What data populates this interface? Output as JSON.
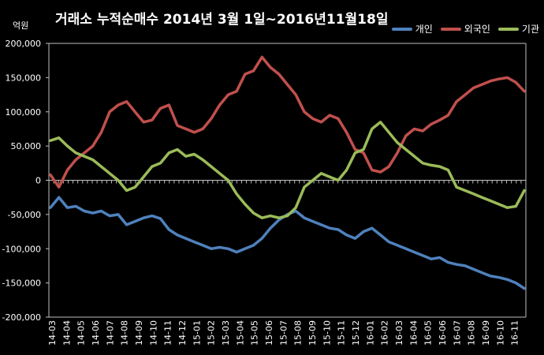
{
  "chart_data": {
    "type": "line",
    "title": "거래소  누적순매수 2014년 3월 1일~2016년11월18일",
    "unit_label": "억원",
    "ylim": [
      -200000,
      200000
    ],
    "ytick_step": 50000,
    "y_tick_labels": [
      "200,000",
      "150,000",
      "100,000",
      "50,000",
      "0",
      "-50,000",
      "-100,000",
      "-150,000",
      "-200,000"
    ],
    "x_labels": [
      "14-03",
      "14-04",
      "14-05",
      "14-06",
      "14-07",
      "14-08",
      "14-09",
      "14-10",
      "14-11",
      "14-12",
      "15-01",
      "15-02",
      "15-03",
      "15-04",
      "15-05",
      "15-06",
      "15-07",
      "15-08",
      "15-09",
      "15-10",
      "15-11",
      "15-12",
      "16-01",
      "16-02",
      "16-03",
      "16-04",
      "16-05",
      "16-06",
      "16-07",
      "16-08",
      "16-09",
      "16-10",
      "16-11"
    ],
    "grid": false,
    "legend_position": "top-right",
    "series": [
      {
        "name": "개인",
        "color": "#4f81bd",
        "values": [
          -40000,
          -25000,
          -40000,
          -38000,
          -45000,
          -48000,
          -45000,
          -52000,
          -50000,
          -65000,
          -60000,
          -55000,
          -52000,
          -56000,
          -72000,
          -80000,
          -85000,
          -90000,
          -95000,
          -100000,
          -98000,
          -100000,
          -105000,
          -100000,
          -95000,
          -85000,
          -70000,
          -58000,
          -50000,
          -45000,
          -55000,
          -60000,
          -65000,
          -70000,
          -72000,
          -80000,
          -85000,
          -75000,
          -70000,
          -80000,
          -90000,
          -95000,
          -100000,
          -105000,
          -110000,
          -115000,
          -113000,
          -120000,
          -123000,
          -125000,
          -130000,
          -135000,
          -140000,
          -142000,
          -145000,
          -150000,
          -158000
        ]
      },
      {
        "name": "외국인",
        "color": "#c0504d",
        "values": [
          8000,
          -10000,
          15000,
          30000,
          40000,
          50000,
          70000,
          100000,
          110000,
          115000,
          100000,
          85000,
          88000,
          105000,
          110000,
          80000,
          75000,
          70000,
          75000,
          90000,
          110000,
          125000,
          130000,
          155000,
          160000,
          180000,
          165000,
          155000,
          140000,
          125000,
          100000,
          90000,
          85000,
          95000,
          90000,
          70000,
          45000,
          40000,
          15000,
          12000,
          20000,
          40000,
          65000,
          75000,
          72000,
          82000,
          88000,
          95000,
          115000,
          125000,
          135000,
          140000,
          145000,
          148000,
          150000,
          143000,
          130000
        ]
      },
      {
        "name": "기관",
        "color": "#9bbb59",
        "values": [
          58000,
          62000,
          50000,
          40000,
          35000,
          30000,
          20000,
          10000,
          0,
          -15000,
          -10000,
          5000,
          20000,
          25000,
          40000,
          45000,
          35000,
          38000,
          30000,
          20000,
          10000,
          0,
          -20000,
          -35000,
          -48000,
          -55000,
          -52000,
          -55000,
          -52000,
          -40000,
          -10000,
          0,
          10000,
          5000,
          0,
          15000,
          40000,
          45000,
          75000,
          85000,
          70000,
          55000,
          45000,
          35000,
          25000,
          22000,
          20000,
          15000,
          -10000,
          -15000,
          -20000,
          -25000,
          -30000,
          -35000,
          -40000,
          -38000,
          -15000
        ]
      }
    ]
  }
}
